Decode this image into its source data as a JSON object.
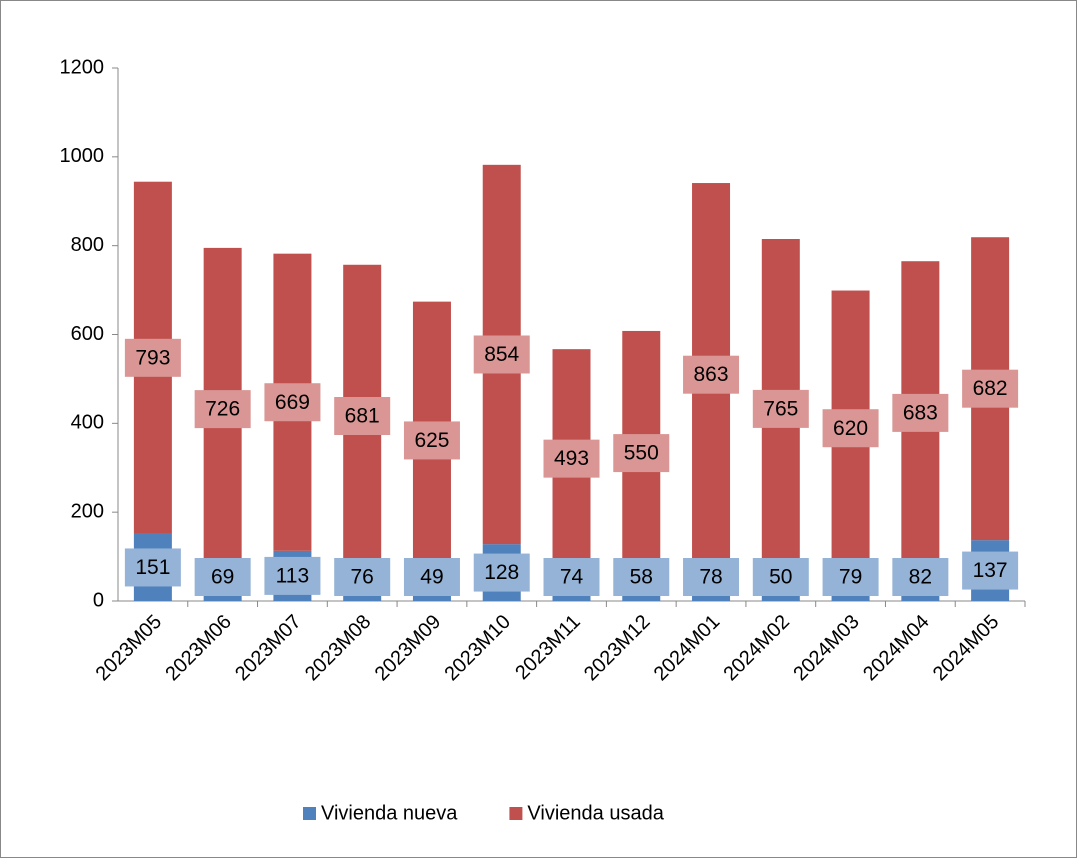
{
  "chart_data": {
    "type": "stacked-bar",
    "categories": [
      "2023M05",
      "2023M06",
      "2023M07",
      "2023M08",
      "2023M09",
      "2023M10",
      "2023M11",
      "2023M12",
      "2024M01",
      "2024M02",
      "2024M03",
      "2024M04",
      "2024M05"
    ],
    "series": [
      {
        "name": "Vivienda nueva",
        "color": "#4f81bd",
        "label_color": "#95b3d7",
        "values": [
          151,
          69,
          113,
          76,
          49,
          128,
          74,
          58,
          78,
          50,
          79,
          82,
          137
        ]
      },
      {
        "name": "Vivienda usada",
        "color": "#c0504d",
        "label_color": "#d99694",
        "values": [
          793,
          726,
          669,
          681,
          625,
          854,
          493,
          550,
          863,
          765,
          620,
          683,
          682
        ]
      }
    ],
    "ylim": [
      0,
      1200
    ],
    "yticks": [
      0,
      200,
      400,
      600,
      800,
      1000,
      1200
    ],
    "grid": false,
    "legend": "bottom"
  }
}
